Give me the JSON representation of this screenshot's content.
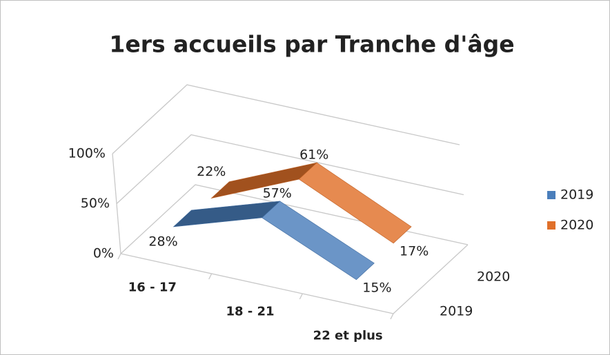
{
  "chart_data": {
    "type": "line",
    "title": "1ers accueils par Tranche d'âge",
    "categories": [
      "16 - 17",
      "18 - 21",
      "22 et plus"
    ],
    "series": [
      {
        "name": "2019",
        "color": "#4a7ebb",
        "values": [
          28,
          57,
          15
        ],
        "value_labels": [
          "28%",
          "57%",
          "15%"
        ]
      },
      {
        "name": "2020",
        "color": "#e0702a",
        "values": [
          22,
          61,
          17
        ],
        "value_labels": [
          "22%",
          "61%",
          "17%"
        ]
      }
    ],
    "ylim": [
      0,
      100
    ],
    "yticks": [
      {
        "value": 0,
        "label": "0%"
      },
      {
        "value": 50,
        "label": "50%"
      },
      {
        "value": 100,
        "label": "100%"
      }
    ],
    "grid": true,
    "legend": "right"
  }
}
